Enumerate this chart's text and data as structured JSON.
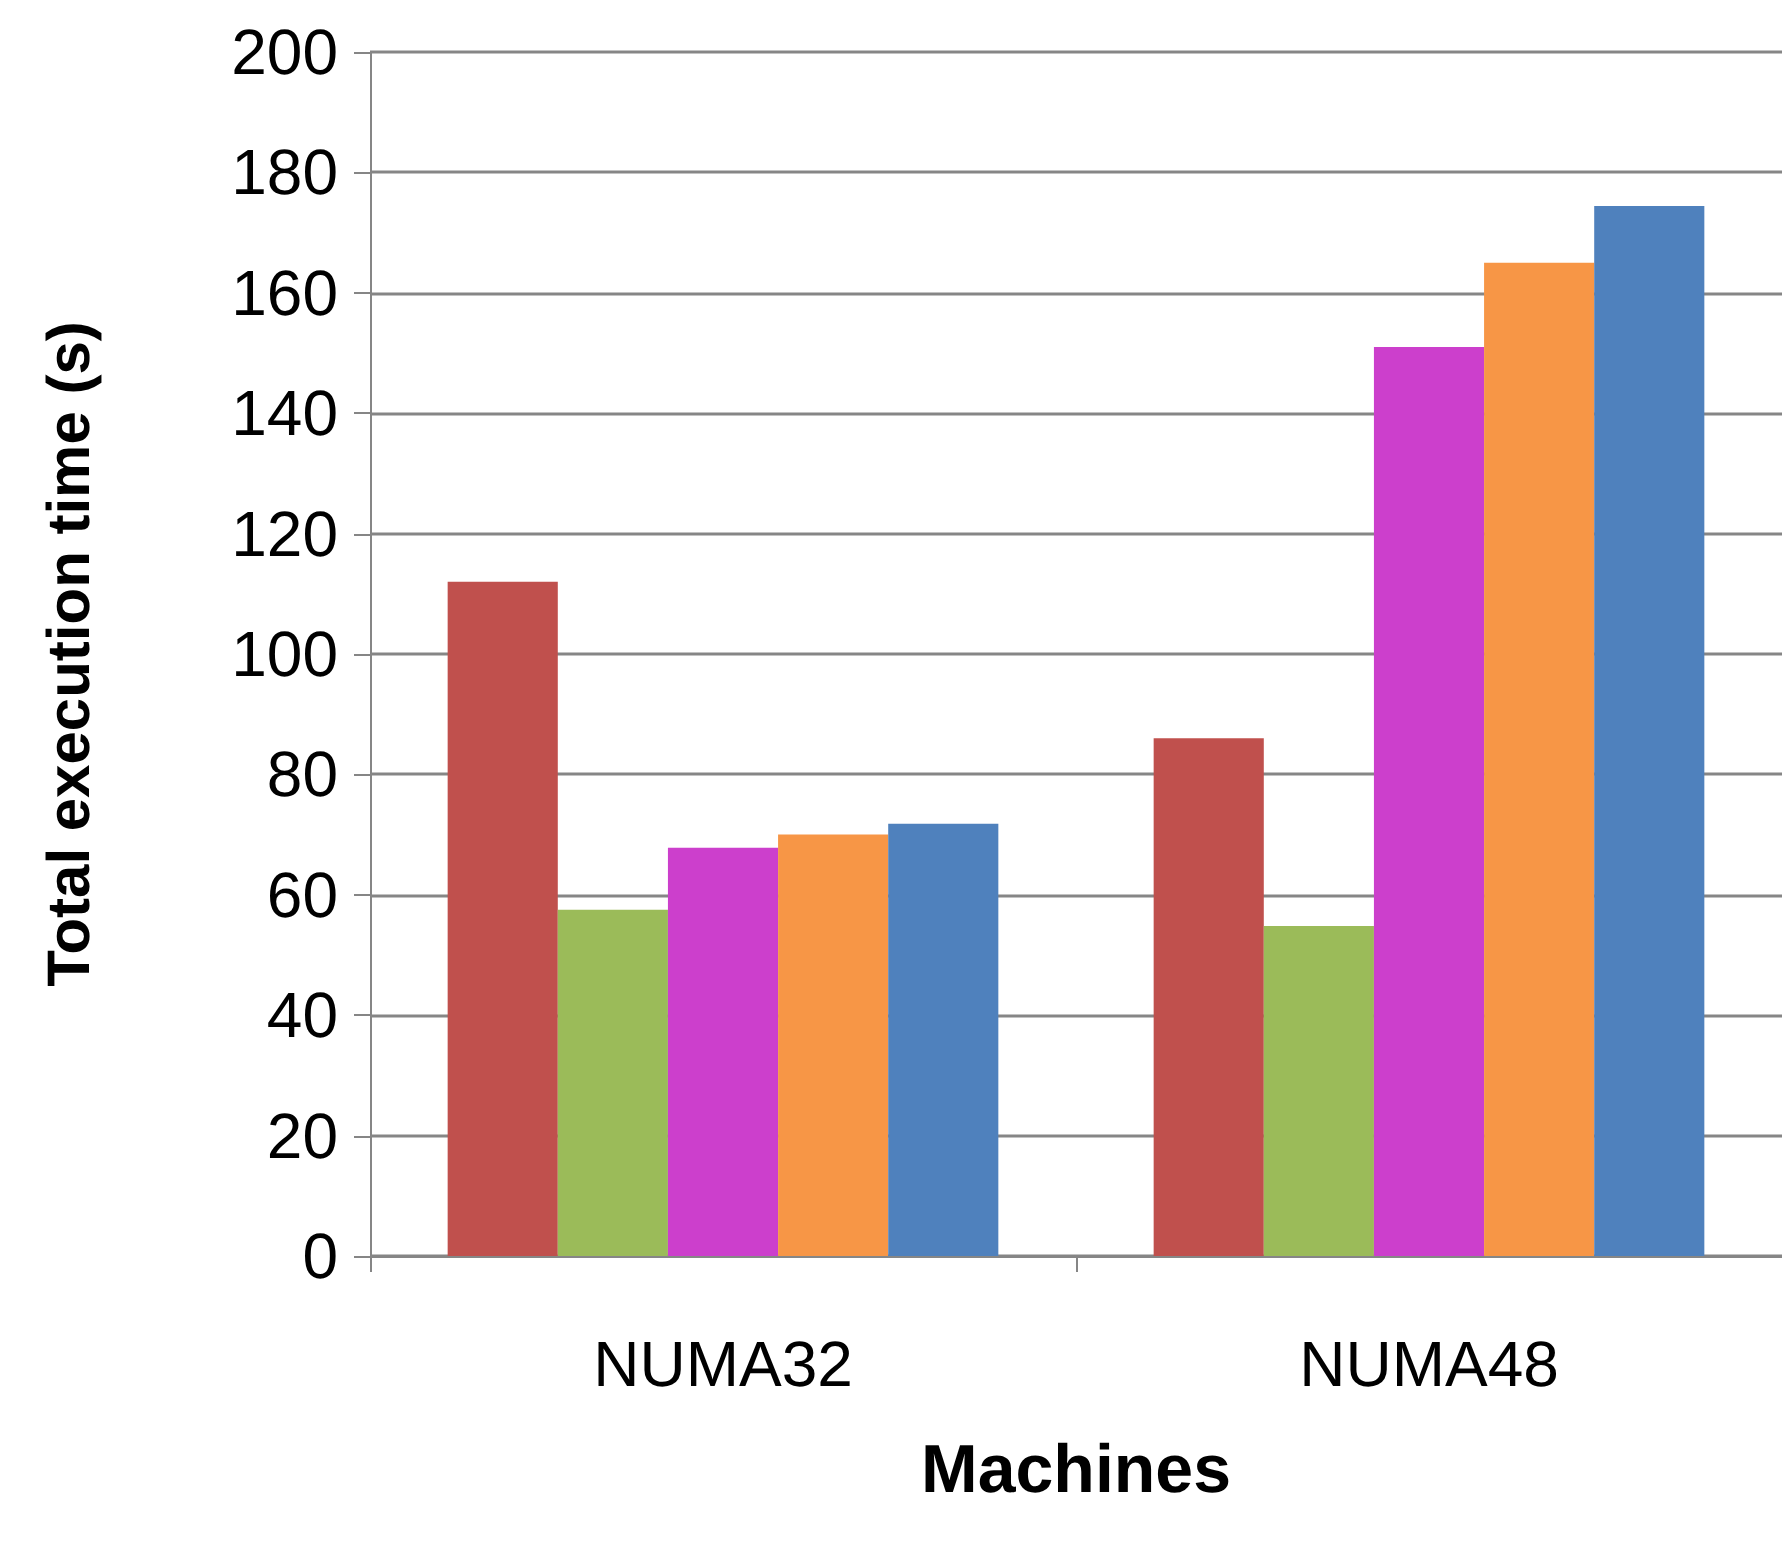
{
  "chart_data": {
    "type": "bar",
    "xlabel": "Machines",
    "ylabel": "Total execution time (s)",
    "categories": [
      "NUMA32",
      "NUMA48"
    ],
    "series": [
      {
        "color": "#c0504d",
        "values": [
          112,
          86
        ]
      },
      {
        "color": "#9bbb59",
        "values": [
          57.5,
          54.8
        ]
      },
      {
        "color": "#cc3fcc",
        "values": [
          67.8,
          151
        ]
      },
      {
        "color": "#f79646",
        "values": [
          70,
          165
        ]
      },
      {
        "color": "#4f81bd",
        "values": [
          71.8,
          174.4
        ]
      }
    ],
    "ylim": [
      0,
      200
    ],
    "yticks": [
      0,
      20,
      40,
      60,
      80,
      100,
      120,
      140,
      160,
      180,
      200
    ],
    "grid": "y"
  }
}
